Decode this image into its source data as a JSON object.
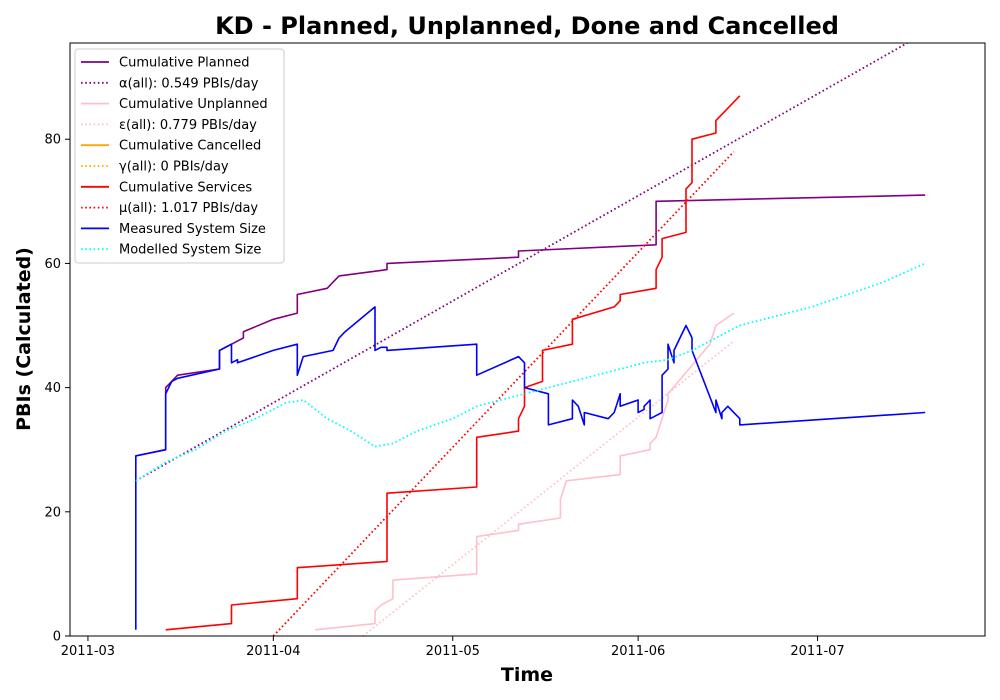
{
  "chart_data": {
    "type": "line",
    "title": "KD - Planned, Unplanned, Done  and Cancelled",
    "xlabel": "Time",
    "ylabel": "PBIs (Calculated)",
    "x_type": "date",
    "xlim": [
      "2011-02-26",
      "2011-07-29"
    ],
    "ylim": [
      0,
      95.5
    ],
    "x_ticks": [
      "2011-03-01",
      "2011-04-01",
      "2011-05-01",
      "2011-06-01",
      "2011-07-01"
    ],
    "x_tick_labels": [
      "2011-03",
      "2011-04",
      "2011-05",
      "2011-06",
      "2011-07"
    ],
    "y_ticks": [
      0,
      20,
      40,
      60,
      80
    ],
    "y_tick_labels": [
      "0",
      "20",
      "40",
      "60",
      "80"
    ],
    "grid": false,
    "legend_position": "upper-left",
    "series": [
      {
        "name": "Cumulative Planned",
        "color": "#800080",
        "style": "solid",
        "x": [
          "2011-03-09",
          "2011-03-09",
          "2011-03-14",
          "2011-03-14",
          "2011-03-15",
          "2011-03-16",
          "2011-03-23",
          "2011-03-23",
          "2011-03-25",
          "2011-03-26",
          "2011-03-27",
          "2011-03-27",
          "2011-04-01",
          "2011-04-05",
          "2011-04-05",
          "2011-04-10",
          "2011-04-11",
          "2011-04-12",
          "2011-04-20",
          "2011-04-20",
          "2011-05-12",
          "2011-05-12",
          "2011-06-04",
          "2011-06-04",
          "2011-07-19"
        ],
        "y": [
          29,
          29,
          30,
          40,
          41,
          42,
          43,
          46,
          47,
          47.5,
          48,
          49,
          51,
          52,
          55,
          56,
          57,
          58,
          59,
          60,
          61,
          62,
          63,
          70,
          71
        ]
      },
      {
        "name": "α(all): 0.549 PBIs/day",
        "color": "#800080",
        "style": "dotted",
        "x": [
          "2011-03-09",
          "2011-07-16"
        ],
        "y": [
          25,
          95.5
        ]
      },
      {
        "name": "Cumulative Unplanned",
        "color": "#ffc0cb",
        "style": "solid",
        "x": [
          "2011-04-08",
          "2011-04-18",
          "2011-04-18",
          "2011-04-19",
          "2011-04-21",
          "2011-04-21",
          "2011-05-05",
          "2011-05-05",
          "2011-05-12",
          "2011-05-12",
          "2011-05-19",
          "2011-05-19",
          "2011-05-20",
          "2011-05-29",
          "2011-05-29",
          "2011-06-03",
          "2011-06-03",
          "2011-06-04",
          "2011-06-06",
          "2011-06-06",
          "2011-06-13",
          "2011-06-14",
          "2011-06-17"
        ],
        "y": [
          1,
          2,
          4,
          5,
          6,
          9,
          10,
          16,
          17,
          18,
          19,
          22,
          25,
          26,
          29,
          30,
          31,
          32,
          38,
          39,
          47,
          50,
          52
        ]
      },
      {
        "name": "ε(all): 0.779 PBIs/day",
        "color": "#ffc0cb",
        "style": "dotted",
        "x": [
          "2011-04-16",
          "2011-06-17"
        ],
        "y": [
          0,
          47.5
        ]
      },
      {
        "name": "Cumulative Cancelled",
        "color": "#ffa500",
        "style": "solid",
        "x": [],
        "y": []
      },
      {
        "name": "γ(all): 0 PBIs/day",
        "color": "#ffa500",
        "style": "dotted",
        "x": [],
        "y": []
      },
      {
        "name": "Cumulative Services",
        "color": "#ff0000",
        "style": "solid",
        "x": [
          "2011-03-14",
          "2011-03-25",
          "2011-03-25",
          "2011-04-05",
          "2011-04-05",
          "2011-04-20",
          "2011-04-20",
          "2011-05-05",
          "2011-05-05",
          "2011-05-12",
          "2011-05-12",
          "2011-05-13",
          "2011-05-13",
          "2011-05-16",
          "2011-05-16",
          "2011-05-21",
          "2011-05-21",
          "2011-05-28",
          "2011-05-29",
          "2011-05-29",
          "2011-06-04",
          "2011-06-04",
          "2011-06-05",
          "2011-06-05",
          "2011-06-09",
          "2011-06-09",
          "2011-06-10",
          "2011-06-10",
          "2011-06-14",
          "2011-06-14",
          "2011-06-18"
        ],
        "y": [
          1,
          2,
          5,
          6,
          11,
          12,
          23,
          24,
          32,
          33,
          35,
          37,
          40,
          41,
          46,
          47,
          51,
          53,
          54,
          55,
          56,
          59,
          61,
          64,
          65,
          72,
          73,
          80,
          81,
          83,
          87
        ]
      },
      {
        "name": "μ(all): 1.017 PBIs/day",
        "color": "#ff0000",
        "style": "dotted",
        "x": [
          "2011-04-01",
          "2011-06-17"
        ],
        "y": [
          0,
          78
        ]
      },
      {
        "name": "Measured System Size",
        "color": "#0000ff",
        "style": "solid",
        "x": [
          "2011-03-09",
          "2011-03-09",
          "2011-03-14",
          "2011-03-14",
          "2011-03-15",
          "2011-03-16",
          "2011-03-23",
          "2011-03-23",
          "2011-03-25",
          "2011-03-25",
          "2011-03-26",
          "2011-03-26",
          "2011-04-01",
          "2011-04-05",
          "2011-04-05",
          "2011-04-06",
          "2011-04-11",
          "2011-04-12",
          "2011-04-13",
          "2011-04-18",
          "2011-04-18",
          "2011-04-19",
          "2011-04-20",
          "2011-04-20",
          "2011-05-05",
          "2011-05-05",
          "2011-05-12",
          "2011-05-13",
          "2011-05-13",
          "2011-05-17",
          "2011-05-17",
          "2011-05-21",
          "2011-05-21",
          "2011-05-22",
          "2011-05-23",
          "2011-05-23",
          "2011-05-27",
          "2011-05-28",
          "2011-05-28",
          "2011-05-29",
          "2011-05-29",
          "2011-06-01",
          "2011-06-01",
          "2011-06-02",
          "2011-06-02",
          "2011-06-03",
          "2011-06-03",
          "2011-06-03",
          "2011-06-04",
          "2011-06-05",
          "2011-06-05",
          "2011-06-06",
          "2011-06-06",
          "2011-06-07",
          "2011-06-07",
          "2011-06-08",
          "2011-06-09",
          "2011-06-10",
          "2011-06-10",
          "2011-06-14",
          "2011-06-14",
          "2011-06-15",
          "2011-06-15",
          "2011-06-16",
          "2011-06-18",
          "2011-06-18",
          "2011-07-19"
        ],
        "y": [
          1,
          29,
          30,
          39,
          41,
          41.5,
          43,
          46,
          47,
          44,
          44.5,
          44,
          46,
          47,
          42,
          45,
          46,
          48,
          49,
          53,
          46,
          46.5,
          46.5,
          46,
          47,
          42,
          45,
          44,
          40,
          39,
          34,
          35,
          38,
          37,
          34,
          36,
          35,
          36,
          36,
          39,
          37,
          38,
          36,
          36.5,
          37,
          38,
          37,
          35,
          35.5,
          36,
          42,
          43,
          47,
          44,
          46,
          48,
          50,
          48,
          46,
          36,
          38,
          35,
          36,
          37,
          35,
          34,
          36
        ]
      },
      {
        "name": "Modelled System Size",
        "color": "#00ffff",
        "style": "dotted",
        "x": [
          "2011-03-09",
          "2011-03-14",
          "2011-03-19",
          "2011-03-24",
          "2011-03-29",
          "2011-04-03",
          "2011-04-06",
          "2011-04-10",
          "2011-04-14",
          "2011-04-18",
          "2011-04-21",
          "2011-04-25",
          "2011-05-01",
          "2011-05-05",
          "2011-05-09",
          "2011-05-13",
          "2011-05-17",
          "2011-05-21",
          "2011-05-25",
          "2011-05-29",
          "2011-06-02",
          "2011-06-06",
          "2011-06-10",
          "2011-06-14",
          "2011-06-18",
          "2011-06-24",
          "2011-06-30",
          "2011-07-06",
          "2011-07-12",
          "2011-07-19"
        ],
        "y": [
          25,
          28,
          30,
          33,
          35,
          37.5,
          38,
          35,
          33,
          30.5,
          31,
          33,
          35,
          37,
          38,
          39,
          40,
          41,
          42,
          43,
          44,
          44.5,
          46,
          48,
          50,
          51.5,
          53,
          55,
          57,
          60
        ]
      }
    ]
  }
}
